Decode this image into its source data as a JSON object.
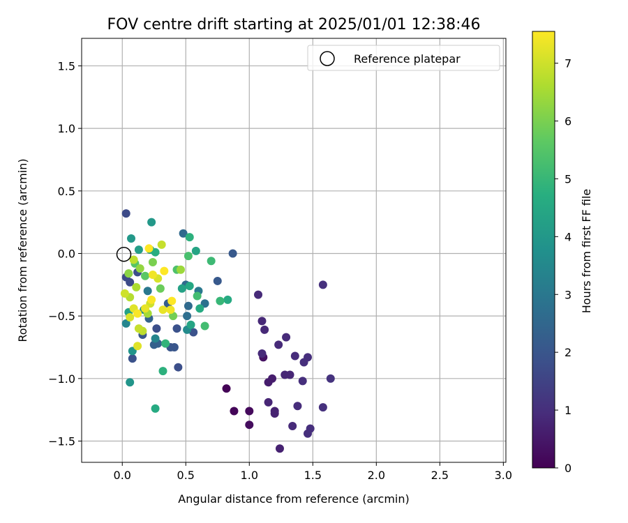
{
  "chart_data": {
    "type": "scatter",
    "title": "FOV centre drift starting at 2025/01/01 12:38:46",
    "xlabel": "Angular distance from reference (arcmin)",
    "ylabel": "Rotation from reference (arcmin)",
    "xlim": [
      -0.32,
      3.02
    ],
    "ylim": [
      -1.67,
      1.72
    ],
    "xticks": [
      0.0,
      0.5,
      1.0,
      1.5,
      2.0,
      2.5,
      3.0
    ],
    "xtick_labels": [
      "0.0",
      "0.5",
      "1.0",
      "1.5",
      "2.0",
      "2.5",
      "3.0"
    ],
    "yticks": [
      -1.5,
      -1.0,
      -0.5,
      0.0,
      0.5,
      1.0,
      1.5
    ],
    "ytick_labels": [
      "−1.5",
      "−1.0",
      "−0.5",
      "0.0",
      "0.5",
      "1.0",
      "1.5"
    ],
    "grid": true,
    "legend": {
      "position": "upper right",
      "entries": [
        "Reference platepar"
      ]
    },
    "reference_point": {
      "x": 0.0,
      "y": 0.0
    },
    "colorbar": {
      "label": "Hours from first FF file",
      "range": [
        0,
        7.55
      ],
      "ticks": [
        0,
        1,
        2,
        3,
        4,
        5,
        6,
        7
      ],
      "tick_labels": [
        "0",
        "1",
        "2",
        "3",
        "4",
        "5",
        "6",
        "7"
      ],
      "colormap": "viridis"
    },
    "points": [
      {
        "x": 0.82,
        "y": -1.08,
        "h": 0.05
      },
      {
        "x": 0.88,
        "y": -1.26,
        "h": 0.1
      },
      {
        "x": 1.0,
        "y": -1.26,
        "h": 0.2
      },
      {
        "x": 1.0,
        "y": -1.37,
        "h": 0.25
      },
      {
        "x": 1.11,
        "y": -0.83,
        "h": 0.35
      },
      {
        "x": 1.15,
        "y": -1.03,
        "h": 0.6
      },
      {
        "x": 1.18,
        "y": -1.0,
        "h": 0.6
      },
      {
        "x": 1.2,
        "y": -1.26,
        "h": 0.7
      },
      {
        "x": 1.2,
        "y": -1.28,
        "h": 0.7
      },
      {
        "x": 1.24,
        "y": -1.56,
        "h": 0.7
      },
      {
        "x": 1.28,
        "y": -0.97,
        "h": 0.8
      },
      {
        "x": 1.32,
        "y": -0.97,
        "h": 0.8
      },
      {
        "x": 1.15,
        "y": -1.19,
        "h": 0.8
      },
      {
        "x": 1.1,
        "y": -0.54,
        "h": 0.85
      },
      {
        "x": 1.12,
        "y": -0.61,
        "h": 0.85
      },
      {
        "x": 1.07,
        "y": -0.33,
        "h": 0.9
      },
      {
        "x": 1.1,
        "y": -0.8,
        "h": 0.9
      },
      {
        "x": 1.23,
        "y": -0.73,
        "h": 0.9
      },
      {
        "x": 1.29,
        "y": -0.67,
        "h": 0.9
      },
      {
        "x": 1.34,
        "y": -1.38,
        "h": 0.9
      },
      {
        "x": 1.36,
        "y": -0.82,
        "h": 0.95
      },
      {
        "x": 1.38,
        "y": -1.22,
        "h": 0.95
      },
      {
        "x": 1.42,
        "y": -1.02,
        "h": 1.0
      },
      {
        "x": 1.43,
        "y": -0.87,
        "h": 1.0
      },
      {
        "x": 1.46,
        "y": -0.83,
        "h": 1.0
      },
      {
        "x": 1.46,
        "y": -1.44,
        "h": 1.0
      },
      {
        "x": 1.48,
        "y": -1.4,
        "h": 1.0
      },
      {
        "x": 1.58,
        "y": -0.25,
        "h": 1.05
      },
      {
        "x": 1.58,
        "y": -1.23,
        "h": 1.05
      },
      {
        "x": 1.64,
        "y": -1.0,
        "h": 1.1
      },
      {
        "x": 0.03,
        "y": 0.32,
        "h": 1.7
      },
      {
        "x": 0.03,
        "y": -0.19,
        "h": 1.7
      },
      {
        "x": 0.06,
        "y": -0.23,
        "h": 1.7
      },
      {
        "x": 0.12,
        "y": -0.15,
        "h": 1.8
      },
      {
        "x": 0.27,
        "y": -0.6,
        "h": 1.8
      },
      {
        "x": 0.44,
        "y": -0.91,
        "h": 1.8
      },
      {
        "x": 0.08,
        "y": -0.84,
        "h": 1.9
      },
      {
        "x": 0.43,
        "y": -0.6,
        "h": 1.9
      },
      {
        "x": 0.56,
        "y": -0.63,
        "h": 1.9
      },
      {
        "x": 0.41,
        "y": -0.75,
        "h": 2.0
      },
      {
        "x": 0.38,
        "y": -0.75,
        "h": 2.0
      },
      {
        "x": 0.16,
        "y": -0.65,
        "h": 2.0
      },
      {
        "x": 0.87,
        "y": 0.0,
        "h": 2.1
      },
      {
        "x": 0.75,
        "y": -0.22,
        "h": 2.1
      },
      {
        "x": 0.36,
        "y": -0.4,
        "h": 2.2
      },
      {
        "x": 0.25,
        "y": -0.73,
        "h": 2.3
      },
      {
        "x": 0.28,
        "y": -0.72,
        "h": 2.3
      },
      {
        "x": 0.21,
        "y": -0.52,
        "h": 2.4
      },
      {
        "x": 0.48,
        "y": 0.16,
        "h": 2.6
      },
      {
        "x": 0.5,
        "y": -0.25,
        "h": 2.6
      },
      {
        "x": 0.52,
        "y": -0.42,
        "h": 2.6
      },
      {
        "x": 0.51,
        "y": -0.5,
        "h": 2.7
      },
      {
        "x": 0.65,
        "y": -0.4,
        "h": 2.8
      },
      {
        "x": 0.6,
        "y": -0.3,
        "h": 3.0
      },
      {
        "x": 0.2,
        "y": -0.3,
        "h": 3.0
      },
      {
        "x": 0.03,
        "y": -0.56,
        "h": 3.4
      },
      {
        "x": 0.26,
        "y": -0.68,
        "h": 3.4
      },
      {
        "x": 0.17,
        "y": -0.45,
        "h": 3.6
      },
      {
        "x": 0.51,
        "y": -0.61,
        "h": 3.6
      },
      {
        "x": 0.06,
        "y": -1.03,
        "h": 3.9
      },
      {
        "x": 0.08,
        "y": -0.78,
        "h": 3.9
      },
      {
        "x": 0.07,
        "y": 0.12,
        "h": 4.0
      },
      {
        "x": 0.23,
        "y": 0.25,
        "h": 4.0
      },
      {
        "x": 0.13,
        "y": 0.03,
        "h": 4.2
      },
      {
        "x": 0.22,
        "y": 0.03,
        "h": 4.2
      },
      {
        "x": 0.05,
        "y": -0.47,
        "h": 4.3
      },
      {
        "x": 0.47,
        "y": -0.28,
        "h": 4.3
      },
      {
        "x": 0.58,
        "y": 0.02,
        "h": 4.4
      },
      {
        "x": 0.54,
        "y": -0.57,
        "h": 4.4
      },
      {
        "x": 0.53,
        "y": -0.26,
        "h": 4.5
      },
      {
        "x": 0.26,
        "y": -1.24,
        "h": 4.6
      },
      {
        "x": 0.61,
        "y": -0.44,
        "h": 4.6
      },
      {
        "x": 0.83,
        "y": -0.37,
        "h": 4.6
      },
      {
        "x": 0.26,
        "y": 0.01,
        "h": 4.7
      },
      {
        "x": 0.53,
        "y": 0.13,
        "h": 4.8
      },
      {
        "x": 0.32,
        "y": -0.94,
        "h": 4.8
      },
      {
        "x": 0.34,
        "y": -0.72,
        "h": 4.9
      },
      {
        "x": 0.77,
        "y": -0.38,
        "h": 5.0
      },
      {
        "x": 0.7,
        "y": -0.06,
        "h": 5.1
      },
      {
        "x": 0.65,
        "y": -0.58,
        "h": 5.2
      },
      {
        "x": 0.59,
        "y": -0.34,
        "h": 5.2
      },
      {
        "x": 0.52,
        "y": -0.02,
        "h": 5.3
      },
      {
        "x": 0.43,
        "y": -0.13,
        "h": 5.4
      },
      {
        "x": 0.1,
        "y": -0.08,
        "h": 5.5
      },
      {
        "x": 0.18,
        "y": -0.18,
        "h": 5.6
      },
      {
        "x": 0.3,
        "y": -0.28,
        "h": 5.8
      },
      {
        "x": 0.4,
        "y": -0.5,
        "h": 5.9
      },
      {
        "x": 0.24,
        "y": -0.07,
        "h": 6.0
      },
      {
        "x": 0.05,
        "y": -0.16,
        "h": 6.2
      },
      {
        "x": 0.14,
        "y": -0.12,
        "h": 6.3
      },
      {
        "x": 0.46,
        "y": -0.13,
        "h": 6.4
      },
      {
        "x": 0.2,
        "y": -0.48,
        "h": 6.5
      },
      {
        "x": 0.11,
        "y": -0.27,
        "h": 6.6
      },
      {
        "x": 0.06,
        "y": -0.35,
        "h": 6.7
      },
      {
        "x": 0.16,
        "y": -0.62,
        "h": 6.8
      },
      {
        "x": 0.09,
        "y": -0.05,
        "h": 6.8
      },
      {
        "x": 0.31,
        "y": 0.07,
        "h": 6.9
      },
      {
        "x": 0.13,
        "y": -0.6,
        "h": 6.9
      },
      {
        "x": 0.02,
        "y": -0.32,
        "h": 7.0
      },
      {
        "x": 0.22,
        "y": -0.4,
        "h": 7.0
      },
      {
        "x": 0.06,
        "y": -0.51,
        "h": 7.1
      },
      {
        "x": 0.28,
        "y": -0.2,
        "h": 7.1
      },
      {
        "x": 0.09,
        "y": -0.44,
        "h": 7.2
      },
      {
        "x": 0.12,
        "y": -0.74,
        "h": 7.2
      },
      {
        "x": 0.18,
        "y": -0.44,
        "h": 7.3
      },
      {
        "x": 0.32,
        "y": -0.45,
        "h": 7.3
      },
      {
        "x": 0.24,
        "y": -0.17,
        "h": 7.4
      },
      {
        "x": 0.38,
        "y": -0.45,
        "h": 7.4
      },
      {
        "x": 0.12,
        "y": -0.48,
        "h": 7.5
      },
      {
        "x": 0.23,
        "y": -0.37,
        "h": 7.5
      },
      {
        "x": 0.21,
        "y": 0.04,
        "h": 7.55
      },
      {
        "x": 0.33,
        "y": -0.14,
        "h": 7.55
      },
      {
        "x": 0.39,
        "y": -0.38,
        "h": 7.55
      }
    ]
  }
}
